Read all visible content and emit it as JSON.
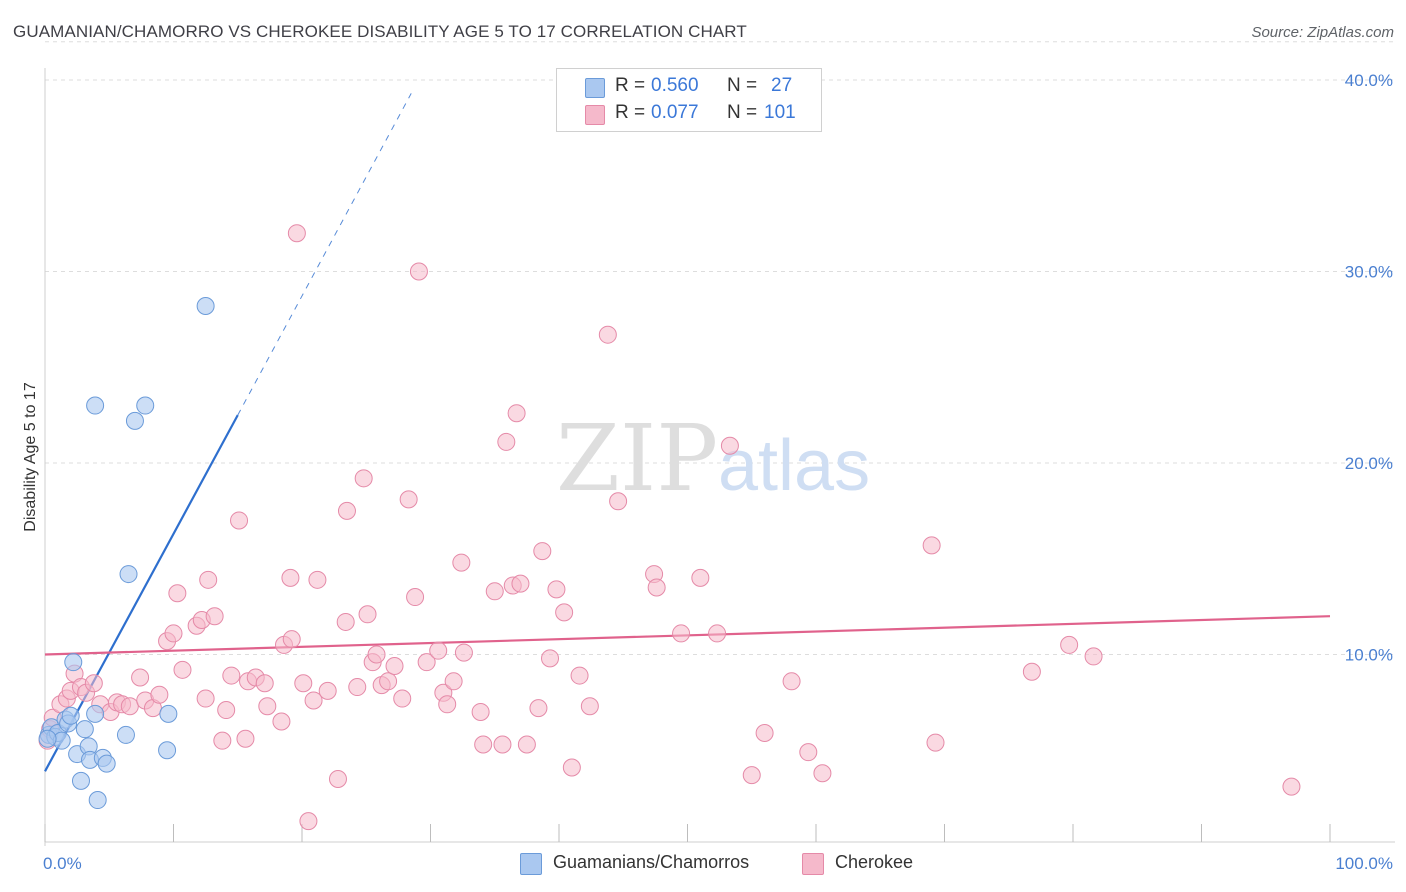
{
  "title": "GUAMANIAN/CHAMORRO VS CHEROKEE DISABILITY AGE 5 TO 17 CORRELATION CHART",
  "source": "Source: ZipAtlas.com",
  "watermark": {
    "zip": "ZIP",
    "atlas": "atlas"
  },
  "colors": {
    "blue_fill": "#aac8f0",
    "blue_stroke": "#6b9bd9",
    "blue_line": "#2e6fce",
    "pink_fill": "#f5b9cb",
    "pink_stroke": "#e58aa8",
    "pink_line": "#e0628c",
    "axis_text": "#4a7fd0",
    "grid": "#dddddd"
  },
  "legend_top": {
    "rows": [
      {
        "r_label": "R =",
        "r_value": "0.560",
        "n_label": "N =",
        "n_value": "27"
      },
      {
        "r_label": "R =",
        "r_value": "0.077",
        "n_label": "N =",
        "n_value": "101"
      }
    ]
  },
  "legend_bottom": [
    "Guamanians/Chamorros",
    "Cherokee"
  ],
  "chart_data": {
    "type": "scatter",
    "title": "GUAMANIAN/CHAMORRO VS CHEROKEE DISABILITY AGE 5 TO 17 CORRELATION CHART",
    "xlabel": "",
    "ylabel": "Disability Age 5 to 17",
    "xlim": [
      0,
      100
    ],
    "ylim": [
      0,
      42
    ],
    "x_tick_labels": [
      "0.0%",
      "100.0%"
    ],
    "y_ticks": [
      10,
      20,
      30,
      40
    ],
    "y_tick_labels": [
      "10.0%",
      "20.0%",
      "30.0%",
      "40.0%"
    ],
    "grid": true,
    "series": [
      {
        "name": "Guamanians/Chamorros",
        "r": 0.56,
        "n": 27,
        "trend": {
          "x0": 0,
          "y0": 3.9,
          "x1": 15,
          "y1": 22.5,
          "dashed_to": {
            "x": 28.5,
            "y": 39.3
          }
        },
        "points": [
          [
            0.3,
            5.8
          ],
          [
            0.5,
            6.2
          ],
          [
            0.8,
            5.7
          ],
          [
            1.0,
            5.9
          ],
          [
            1.3,
            5.5
          ],
          [
            1.6,
            6.6
          ],
          [
            1.8,
            6.4
          ],
          [
            2.0,
            6.8
          ],
          [
            2.2,
            9.6
          ],
          [
            2.5,
            4.8
          ],
          [
            2.8,
            3.4
          ],
          [
            3.1,
            6.1
          ],
          [
            3.4,
            5.2
          ],
          [
            3.5,
            4.5
          ],
          [
            3.9,
            6.9
          ],
          [
            4.1,
            2.4
          ],
          [
            4.5,
            4.6
          ],
          [
            4.8,
            4.3
          ],
          [
            6.3,
            5.8
          ],
          [
            6.5,
            14.2
          ],
          [
            7.0,
            22.2
          ],
          [
            7.8,
            23.0
          ],
          [
            9.5,
            5.0
          ],
          [
            9.6,
            6.9
          ],
          [
            12.5,
            28.2
          ],
          [
            3.9,
            23.0
          ],
          [
            0.2,
            5.6
          ]
        ]
      },
      {
        "name": "Cherokee",
        "r": 0.077,
        "n": 101,
        "trend": {
          "x0": 0,
          "y0": 10.0,
          "x1": 100,
          "y1": 12.0
        },
        "points": [
          [
            0.2,
            5.5
          ],
          [
            0.4,
            6.1
          ],
          [
            0.6,
            6.7
          ],
          [
            1.2,
            7.4
          ],
          [
            1.7,
            7.7
          ],
          [
            2.0,
            8.1
          ],
          [
            2.3,
            9.0
          ],
          [
            2.8,
            8.3
          ],
          [
            3.2,
            8.0
          ],
          [
            3.8,
            8.5
          ],
          [
            4.3,
            7.4
          ],
          [
            5.1,
            7.0
          ],
          [
            5.6,
            7.5
          ],
          [
            6.0,
            7.4
          ],
          [
            6.6,
            7.3
          ],
          [
            7.4,
            8.8
          ],
          [
            7.8,
            7.6
          ],
          [
            8.4,
            7.2
          ],
          [
            8.9,
            7.9
          ],
          [
            9.5,
            10.7
          ],
          [
            10.0,
            11.1
          ],
          [
            10.3,
            13.2
          ],
          [
            10.7,
            9.2
          ],
          [
            11.8,
            11.5
          ],
          [
            12.2,
            11.8
          ],
          [
            12.5,
            7.7
          ],
          [
            12.7,
            13.9
          ],
          [
            13.2,
            12.0
          ],
          [
            13.8,
            5.5
          ],
          [
            14.1,
            7.1
          ],
          [
            14.5,
            8.9
          ],
          [
            15.1,
            17.0
          ],
          [
            15.6,
            5.6
          ],
          [
            15.8,
            8.6
          ],
          [
            16.4,
            8.8
          ],
          [
            17.1,
            8.5
          ],
          [
            17.3,
            7.3
          ],
          [
            18.4,
            6.5
          ],
          [
            18.6,
            10.5
          ],
          [
            19.2,
            10.8
          ],
          [
            19.1,
            14.0
          ],
          [
            19.6,
            32.0
          ],
          [
            20.1,
            8.5
          ],
          [
            20.5,
            1.3
          ],
          [
            20.9,
            7.6
          ],
          [
            21.2,
            13.9
          ],
          [
            22.0,
            8.1
          ],
          [
            22.8,
            3.5
          ],
          [
            23.4,
            11.7
          ],
          [
            23.5,
            17.5
          ],
          [
            24.3,
            8.3
          ],
          [
            24.8,
            19.2
          ],
          [
            25.1,
            12.1
          ],
          [
            25.5,
            9.6
          ],
          [
            25.8,
            10.0
          ],
          [
            26.2,
            8.4
          ],
          [
            26.7,
            8.6
          ],
          [
            27.2,
            9.4
          ],
          [
            27.8,
            7.7
          ],
          [
            28.3,
            18.1
          ],
          [
            28.8,
            13.0
          ],
          [
            29.1,
            30.0
          ],
          [
            29.7,
            9.6
          ],
          [
            30.6,
            10.2
          ],
          [
            31.0,
            8.0
          ],
          [
            31.3,
            7.4
          ],
          [
            31.8,
            8.6
          ],
          [
            32.4,
            14.8
          ],
          [
            32.6,
            10.1
          ],
          [
            33.9,
            7.0
          ],
          [
            34.1,
            5.3
          ],
          [
            35.0,
            13.3
          ],
          [
            35.6,
            5.3
          ],
          [
            35.9,
            21.1
          ],
          [
            36.4,
            13.6
          ],
          [
            36.7,
            22.6
          ],
          [
            37.0,
            13.7
          ],
          [
            37.5,
            5.3
          ],
          [
            38.4,
            7.2
          ],
          [
            38.7,
            15.4
          ],
          [
            39.3,
            9.8
          ],
          [
            39.8,
            13.4
          ],
          [
            40.4,
            12.2
          ],
          [
            41.0,
            4.1
          ],
          [
            41.6,
            8.9
          ],
          [
            42.4,
            7.3
          ],
          [
            43.8,
            26.7
          ],
          [
            44.6,
            18.0
          ],
          [
            47.4,
            14.2
          ],
          [
            47.6,
            13.5
          ],
          [
            49.5,
            11.1
          ],
          [
            51.0,
            14.0
          ],
          [
            52.3,
            11.1
          ],
          [
            53.3,
            20.9
          ],
          [
            55.0,
            3.7
          ],
          [
            56.0,
            5.9
          ],
          [
            58.1,
            8.6
          ],
          [
            59.4,
            4.9
          ],
          [
            60.5,
            3.8
          ],
          [
            69.0,
            15.7
          ],
          [
            69.3,
            5.4
          ],
          [
            76.8,
            9.1
          ],
          [
            79.7,
            10.5
          ],
          [
            81.6,
            9.9
          ],
          [
            97.0,
            3.1
          ]
        ]
      }
    ]
  }
}
